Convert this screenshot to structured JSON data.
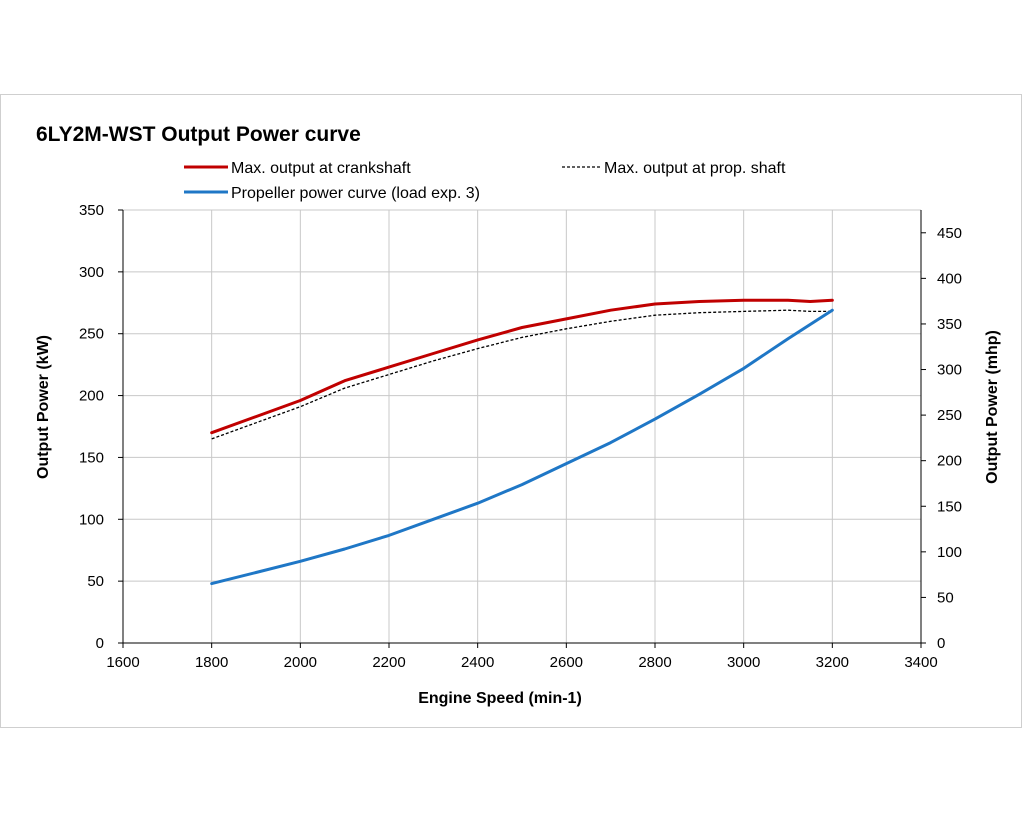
{
  "chart_data": {
    "type": "line",
    "title": "6LY2M-WST Output Power  curve",
    "xlabel": "Engine Speed (min-1)",
    "ylabel": "Output Power (kW)",
    "y2label": "Output Power (mhp)",
    "xlim": [
      1600,
      3400
    ],
    "ylim": [
      0,
      350
    ],
    "y2lim": [
      0,
      475
    ],
    "xticks": [
      1600,
      1800,
      2000,
      2200,
      2400,
      2600,
      2800,
      3000,
      3200,
      3400
    ],
    "yticks": [
      0,
      50,
      100,
      150,
      200,
      250,
      300,
      350
    ],
    "y2ticks": [
      0,
      50,
      100,
      150,
      200,
      250,
      300,
      350,
      400,
      450
    ],
    "grid": true,
    "legend_position": "top",
    "series": [
      {
        "name": "Max. output at crankshaft",
        "color": "#c00000",
        "style": "solid",
        "x": [
          1800,
          1900,
          2000,
          2100,
          2200,
          2300,
          2400,
          2500,
          2600,
          2700,
          2800,
          2900,
          3000,
          3100,
          3150,
          3200
        ],
        "y": [
          170,
          183,
          196,
          212,
          223,
          234,
          245,
          255,
          262,
          269,
          274,
          276,
          277,
          277,
          276,
          277
        ]
      },
      {
        "name": "Max. output at prop. shaft",
        "color": "#000000",
        "style": "dashed",
        "x": [
          1800,
          1900,
          2000,
          2100,
          2200,
          2300,
          2400,
          2500,
          2600,
          2700,
          2800,
          2900,
          3000,
          3100,
          3150,
          3200
        ],
        "y": [
          165,
          178,
          191,
          206,
          217,
          228,
          238,
          247,
          254,
          260,
          265,
          267,
          268,
          269,
          268,
          268
        ]
      },
      {
        "name": "Propeller power curve (load exp. 3)",
        "color": "#1f77c6",
        "style": "solid",
        "x": [
          1800,
          1900,
          2000,
          2100,
          2200,
          2300,
          2400,
          2500,
          2600,
          2700,
          2800,
          2900,
          3000,
          3100,
          3200
        ],
        "y": [
          48,
          57,
          66,
          76,
          87,
          100,
          113,
          128,
          145,
          162,
          181,
          201,
          222,
          246,
          269
        ]
      }
    ]
  }
}
